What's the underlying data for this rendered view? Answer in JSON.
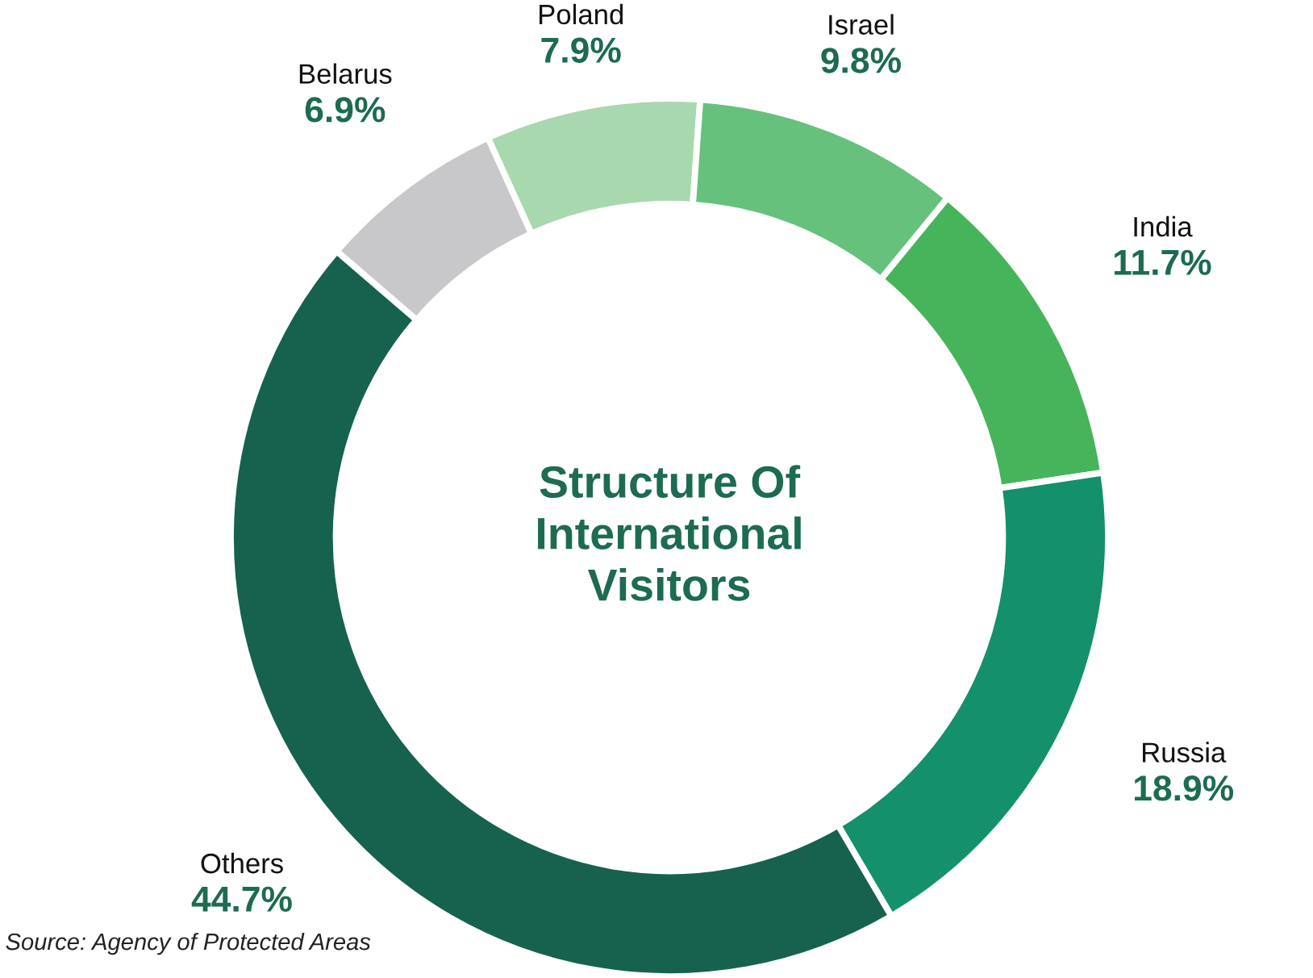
{
  "chart_data": {
    "type": "donut",
    "title": "Structure Of International Visitors",
    "categories": [
      "Poland",
      "Israel",
      "India",
      "Russia",
      "Others",
      "Belarus"
    ],
    "values": [
      7.9,
      9.8,
      11.7,
      18.9,
      44.7,
      6.9
    ],
    "value_labels": [
      "7.9%",
      "9.8%",
      "11.7%",
      "18.9%",
      "44.7%",
      "6.9%"
    ],
    "colors": [
      "#a8d8ae",
      "#66c17d",
      "#46b45a",
      "#14906a",
      "#16624e",
      "#c8c8ca"
    ],
    "annotations": [
      "Source: Agency of Protected Areas"
    ],
    "legend": false
  }
}
